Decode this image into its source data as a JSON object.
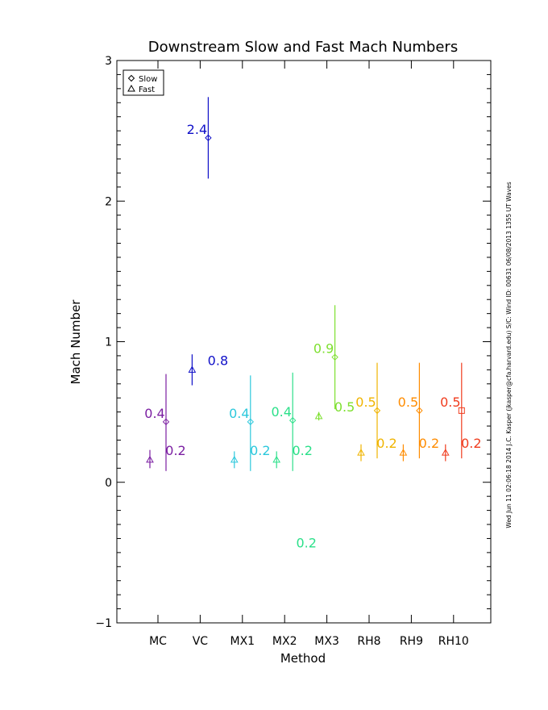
{
  "chart_data": {
    "type": "scatter",
    "title": "Downstream Slow and Fast Mach Numbers",
    "xlabel": "Method",
    "ylabel": "Mach Number",
    "ylim": [
      -1,
      3
    ],
    "y_ticks": [
      "−1",
      "0",
      "1",
      "2",
      "3"
    ],
    "y_tick_values": [
      -1,
      0,
      1,
      2,
      3
    ],
    "categories": [
      "MC",
      "VC",
      "MX1",
      "MX2",
      "MX3",
      "RH8",
      "RH9",
      "RH10"
    ],
    "category_colors": [
      "#7b1fa2",
      "#1010c8",
      "#2cc8dc",
      "#2ce08a",
      "#7ee030",
      "#f0b400",
      "#ff8c00",
      "#f03c1e"
    ],
    "legend": {
      "position": "top-left",
      "entries": [
        {
          "symbol": "diamond",
          "label": "Slow"
        },
        {
          "symbol": "triangle",
          "label": "Fast"
        }
      ]
    },
    "series": [
      {
        "name": "Slow",
        "symbol": "diamond",
        "points": [
          {
            "category": "MC",
            "y": 0.43,
            "ylow": 0.08,
            "yhigh": 0.77,
            "label": "0.4"
          },
          {
            "category": "VC",
            "y": 2.45,
            "ylow": 2.16,
            "yhigh": 2.74,
            "label": "2.4"
          },
          {
            "category": "MX1",
            "y": 0.43,
            "ylow": 0.08,
            "yhigh": 0.76,
            "label": "0.4"
          },
          {
            "category": "MX2",
            "y": 0.44,
            "ylow": 0.08,
            "yhigh": 0.78,
            "label": "0.4"
          },
          {
            "category": "MX3",
            "y": 0.89,
            "ylow": 0.52,
            "yhigh": 1.26,
            "label": "0.9"
          },
          {
            "category": "RH8",
            "y": 0.51,
            "ylow": 0.17,
            "yhigh": 0.85,
            "label": "0.5"
          },
          {
            "category": "RH9",
            "y": 0.51,
            "ylow": 0.17,
            "yhigh": 0.85,
            "label": "0.5"
          },
          {
            "category": "RH10",
            "y": 0.51,
            "ylow": 0.17,
            "yhigh": 0.85,
            "label": "0.5"
          }
        ]
      },
      {
        "name": "Fast",
        "symbol": "triangle",
        "points": [
          {
            "category": "MC",
            "y": 0.16,
            "ylow": 0.1,
            "yhigh": 0.23,
            "label": "0.2"
          },
          {
            "category": "VC",
            "y": 0.8,
            "ylow": 0.69,
            "yhigh": 0.91,
            "label": "0.8"
          },
          {
            "category": "MX1",
            "y": 0.16,
            "ylow": 0.1,
            "yhigh": 0.22,
            "label": "0.2"
          },
          {
            "category": "MX2",
            "y": 0.16,
            "ylow": 0.1,
            "yhigh": 0.22,
            "label": "0.2"
          },
          {
            "category": "MX3",
            "y": 0.47,
            "ylow": 0.44,
            "yhigh": 0.5,
            "label": "0.5"
          },
          {
            "category": "RH8",
            "y": 0.21,
            "ylow": 0.15,
            "yhigh": 0.27,
            "label": "0.2"
          },
          {
            "category": "RH9",
            "y": 0.21,
            "ylow": 0.15,
            "yhigh": 0.27,
            "label": "0.2"
          },
          {
            "category": "RH10",
            "y": 0.21,
            "ylow": 0.15,
            "yhigh": 0.27,
            "label": "0.2"
          }
        ]
      }
    ],
    "annotations": [
      {
        "text": "0.2",
        "category": "MX2",
        "y": -0.43,
        "color": "#2ce08a"
      }
    ],
    "side_caption": "Wed Jun 11 02:06:18 2014   J.C. Kasper (jkasper@cfa.harvard.edu)   S/C: Wind ID: 00631 06/08/2013   1355 UT Waves"
  }
}
